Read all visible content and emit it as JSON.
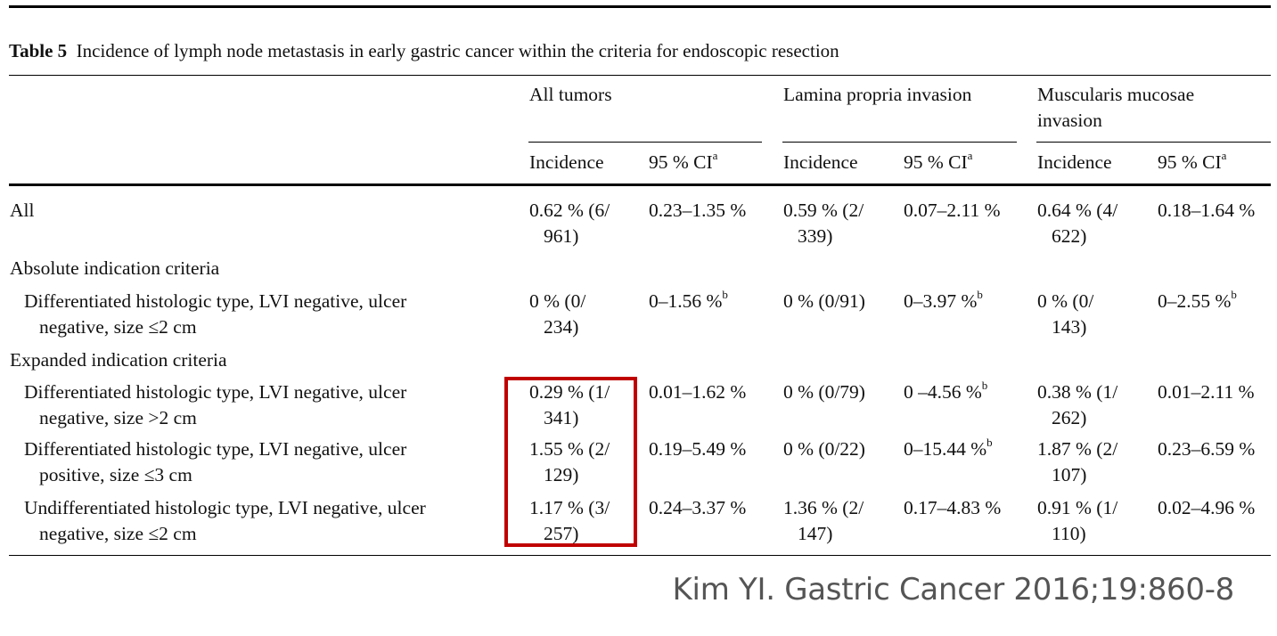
{
  "caption": {
    "label": "Table 5",
    "text": "Incidence of lymph node metastasis in early gastric cancer within the criteria for endoscopic resection"
  },
  "header": {
    "groups": [
      "All tumors",
      "Lamina propria invasion",
      "Muscularis mucosae",
      "invasion"
    ],
    "incidence": "Incidence",
    "ci": "95 % CI",
    "ci_footnote": "a"
  },
  "rows": [
    {
      "label": [
        "All"
      ],
      "cells": [
        [
          "0.62 % (6/",
          "961)"
        ],
        [
          "0.23–1.35 %"
        ],
        [
          "0.59 % (2/",
          "339)"
        ],
        [
          "0.07–2.11 %"
        ],
        [
          "0.64 % (4/",
          "622)"
        ],
        [
          "0.18–1.64 %"
        ]
      ]
    },
    {
      "section": "Absolute indication criteria"
    },
    {
      "label": [
        "Differentiated histologic type, LVI negative, ulcer",
        "negative, size ≤2 cm"
      ],
      "cells": [
        [
          "0 % (0/",
          "234)"
        ],
        [
          "0–1.56 %"
        ],
        [
          "0 % (0/91)"
        ],
        [
          "0–3.97 %"
        ],
        [
          "0 % (0/",
          "143)"
        ],
        [
          "0–2.55 %"
        ]
      ]
    },
    {
      "section": "Expanded indication criteria"
    },
    {
      "label": [
        "Differentiated histologic type, LVI negative, ulcer",
        "negative, size >2 cm"
      ],
      "cells": [
        [
          "0.29 % (1/",
          "341)"
        ],
        [
          "0.01–1.62 %"
        ],
        [
          "0 % (0/79)"
        ],
        [
          "0 –4.56 %"
        ],
        [
          "0.38 % (1/",
          "262)"
        ],
        [
          "0.01–2.11 %"
        ]
      ]
    },
    {
      "label": [
        "Differentiated histologic type, LVI negative, ulcer",
        "positive, size ≤3 cm"
      ],
      "cells": [
        [
          "1.55 % (2/",
          "129)"
        ],
        [
          "0.19–5.49 %"
        ],
        [
          "0 % (0/22)"
        ],
        [
          "0–15.44 %"
        ],
        [
          "1.87 % (2/",
          "107)"
        ],
        [
          "0.23–6.59 %"
        ]
      ]
    },
    {
      "label": [
        "Undifferentiated histologic type, LVI negative, ulcer",
        "negative, size ≤2 cm"
      ],
      "cells": [
        [
          "1.17 % (3/",
          "257)"
        ],
        [
          "0.24–3.37 %"
        ],
        [
          "1.36 % (2/",
          "147)"
        ],
        [
          "0.17–4.83 %"
        ],
        [
          "0.91 % (1/",
          "110)"
        ],
        [
          "0.02–4.96 %"
        ]
      ]
    }
  ],
  "footnote_b": "b",
  "citation": "Kim YI. Gastric Cancer 2016;19:860-8",
  "colors": {
    "highlight_border": "#c00000",
    "citation_text": "#555555"
  }
}
